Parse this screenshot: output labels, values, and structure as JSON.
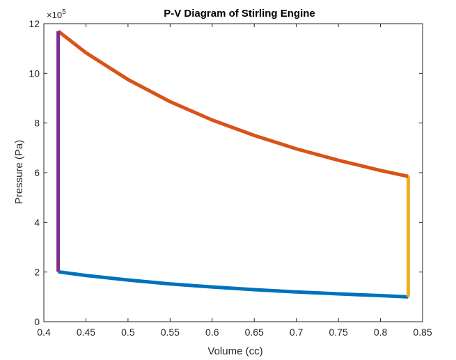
{
  "chart_data": {
    "type": "line",
    "title": "P-V Diagram of Stirling Engine",
    "xlabel": "Volume (cc)",
    "ylabel": "Pressure (Pa)",
    "y_multiplier": "×10",
    "y_multiplier_exponent": "5",
    "xlim": [
      0.4,
      0.85
    ],
    "ylim": [
      0,
      12
    ],
    "xticks": [
      0.4,
      0.45,
      0.5,
      0.55,
      0.6,
      0.65,
      0.7,
      0.75,
      0.8,
      0.85
    ],
    "xtick_labels": [
      "0.4",
      "0.45",
      "0.5",
      "0.55",
      "0.6",
      "0.65",
      "0.7",
      "0.75",
      "0.8",
      "0.85"
    ],
    "yticks": [
      0,
      2,
      4,
      6,
      8,
      10,
      12
    ],
    "ytick_labels": [
      "0",
      "2",
      "4",
      "6",
      "8",
      "10",
      "12"
    ],
    "grid": false,
    "series": [
      {
        "color": "#0072BD",
        "x": [
          0.417,
          0.45,
          0.5,
          0.55,
          0.6,
          0.65,
          0.7,
          0.75,
          0.8,
          0.833
        ],
        "y": [
          2.01,
          1.86,
          1.68,
          1.52,
          1.4,
          1.29,
          1.2,
          1.12,
          1.05,
          1.0
        ]
      },
      {
        "color": "#EDB120",
        "x": [
          0.833,
          0.833
        ],
        "y": [
          1.0,
          5.85
        ]
      },
      {
        "color": "#D95319",
        "x": [
          0.833,
          0.8,
          0.75,
          0.7,
          0.65,
          0.6,
          0.55,
          0.5,
          0.45,
          0.417
        ],
        "y": [
          5.85,
          6.09,
          6.5,
          6.96,
          7.5,
          8.12,
          8.86,
          9.75,
          10.83,
          11.7
        ]
      },
      {
        "color": "#7E2F8E",
        "x": [
          0.417,
          0.417
        ],
        "y": [
          11.7,
          2.01
        ]
      }
    ]
  }
}
